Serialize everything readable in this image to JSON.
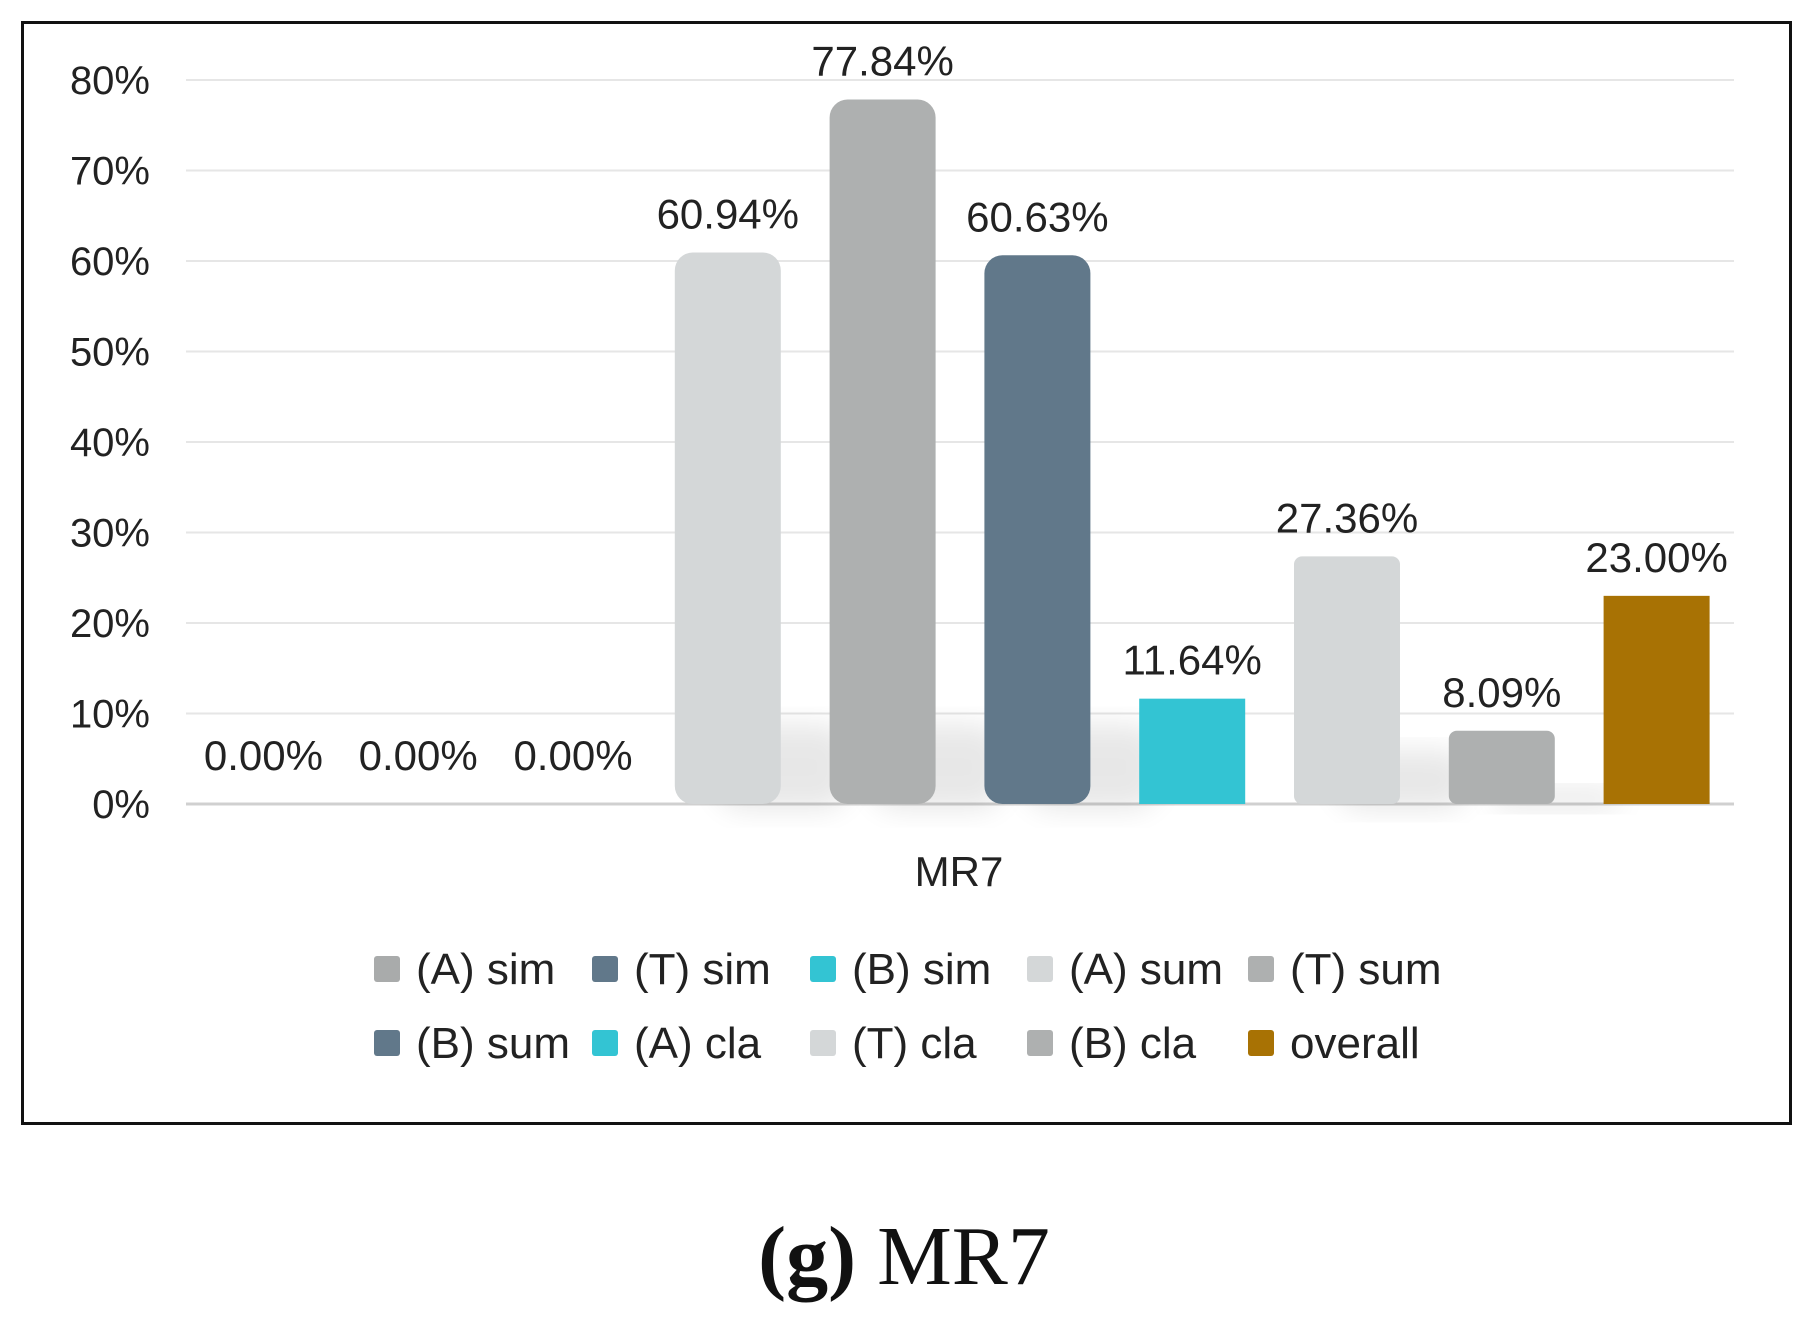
{
  "caption": {
    "label": "(g)",
    "text": "MR7"
  },
  "chart_data": {
    "type": "bar",
    "title": "",
    "xlabel": "",
    "ylabel": "",
    "ylim": [
      0,
      80
    ],
    "yticks": [
      0,
      10,
      20,
      30,
      40,
      50,
      60,
      70,
      80
    ],
    "ytick_labels": [
      "0%",
      "10%",
      "20%",
      "30%",
      "40%",
      "50%",
      "60%",
      "70%",
      "80%"
    ],
    "grid": true,
    "legend_position": "bottom",
    "categories": [
      "MR7"
    ],
    "series": [
      {
        "name": "(A) sim",
        "values": [
          0.0
        ],
        "label": "0.00%",
        "color": "#a9abab",
        "shape": "cylinder"
      },
      {
        "name": "(T) sim",
        "values": [
          0.0
        ],
        "label": "0.00%",
        "color": "#61788a",
        "shape": "cylinder"
      },
      {
        "name": "(B) sim",
        "values": [
          0.0
        ],
        "label": "0.00%",
        "color": "#33c4d3",
        "shape": "flat"
      },
      {
        "name": "(A) sum",
        "values": [
          60.94
        ],
        "label": "60.94%",
        "color": "#d4d7d8",
        "shape": "cylinder"
      },
      {
        "name": "(T) sum",
        "values": [
          77.84
        ],
        "label": "77.84%",
        "color": "#aeb0b0",
        "shape": "cylinder"
      },
      {
        "name": "(B) sum",
        "values": [
          60.63
        ],
        "label": "60.63%",
        "color": "#61788a",
        "shape": "cylinder"
      },
      {
        "name": "(A) cla",
        "values": [
          11.64
        ],
        "label": "11.64%",
        "color": "#33c4d3",
        "shape": "flat"
      },
      {
        "name": "(T) cla",
        "values": [
          27.36
        ],
        "label": "27.36%",
        "color": "#d4d7d8",
        "shape": "rounded"
      },
      {
        "name": "(B) cla",
        "values": [
          8.09
        ],
        "label": "8.09%",
        "color": "#aeb0b0",
        "shape": "rounded"
      },
      {
        "name": "overall",
        "values": [
          23.0
        ],
        "label": "23.00%",
        "color": "#a87204",
        "shape": "flat"
      }
    ]
  }
}
